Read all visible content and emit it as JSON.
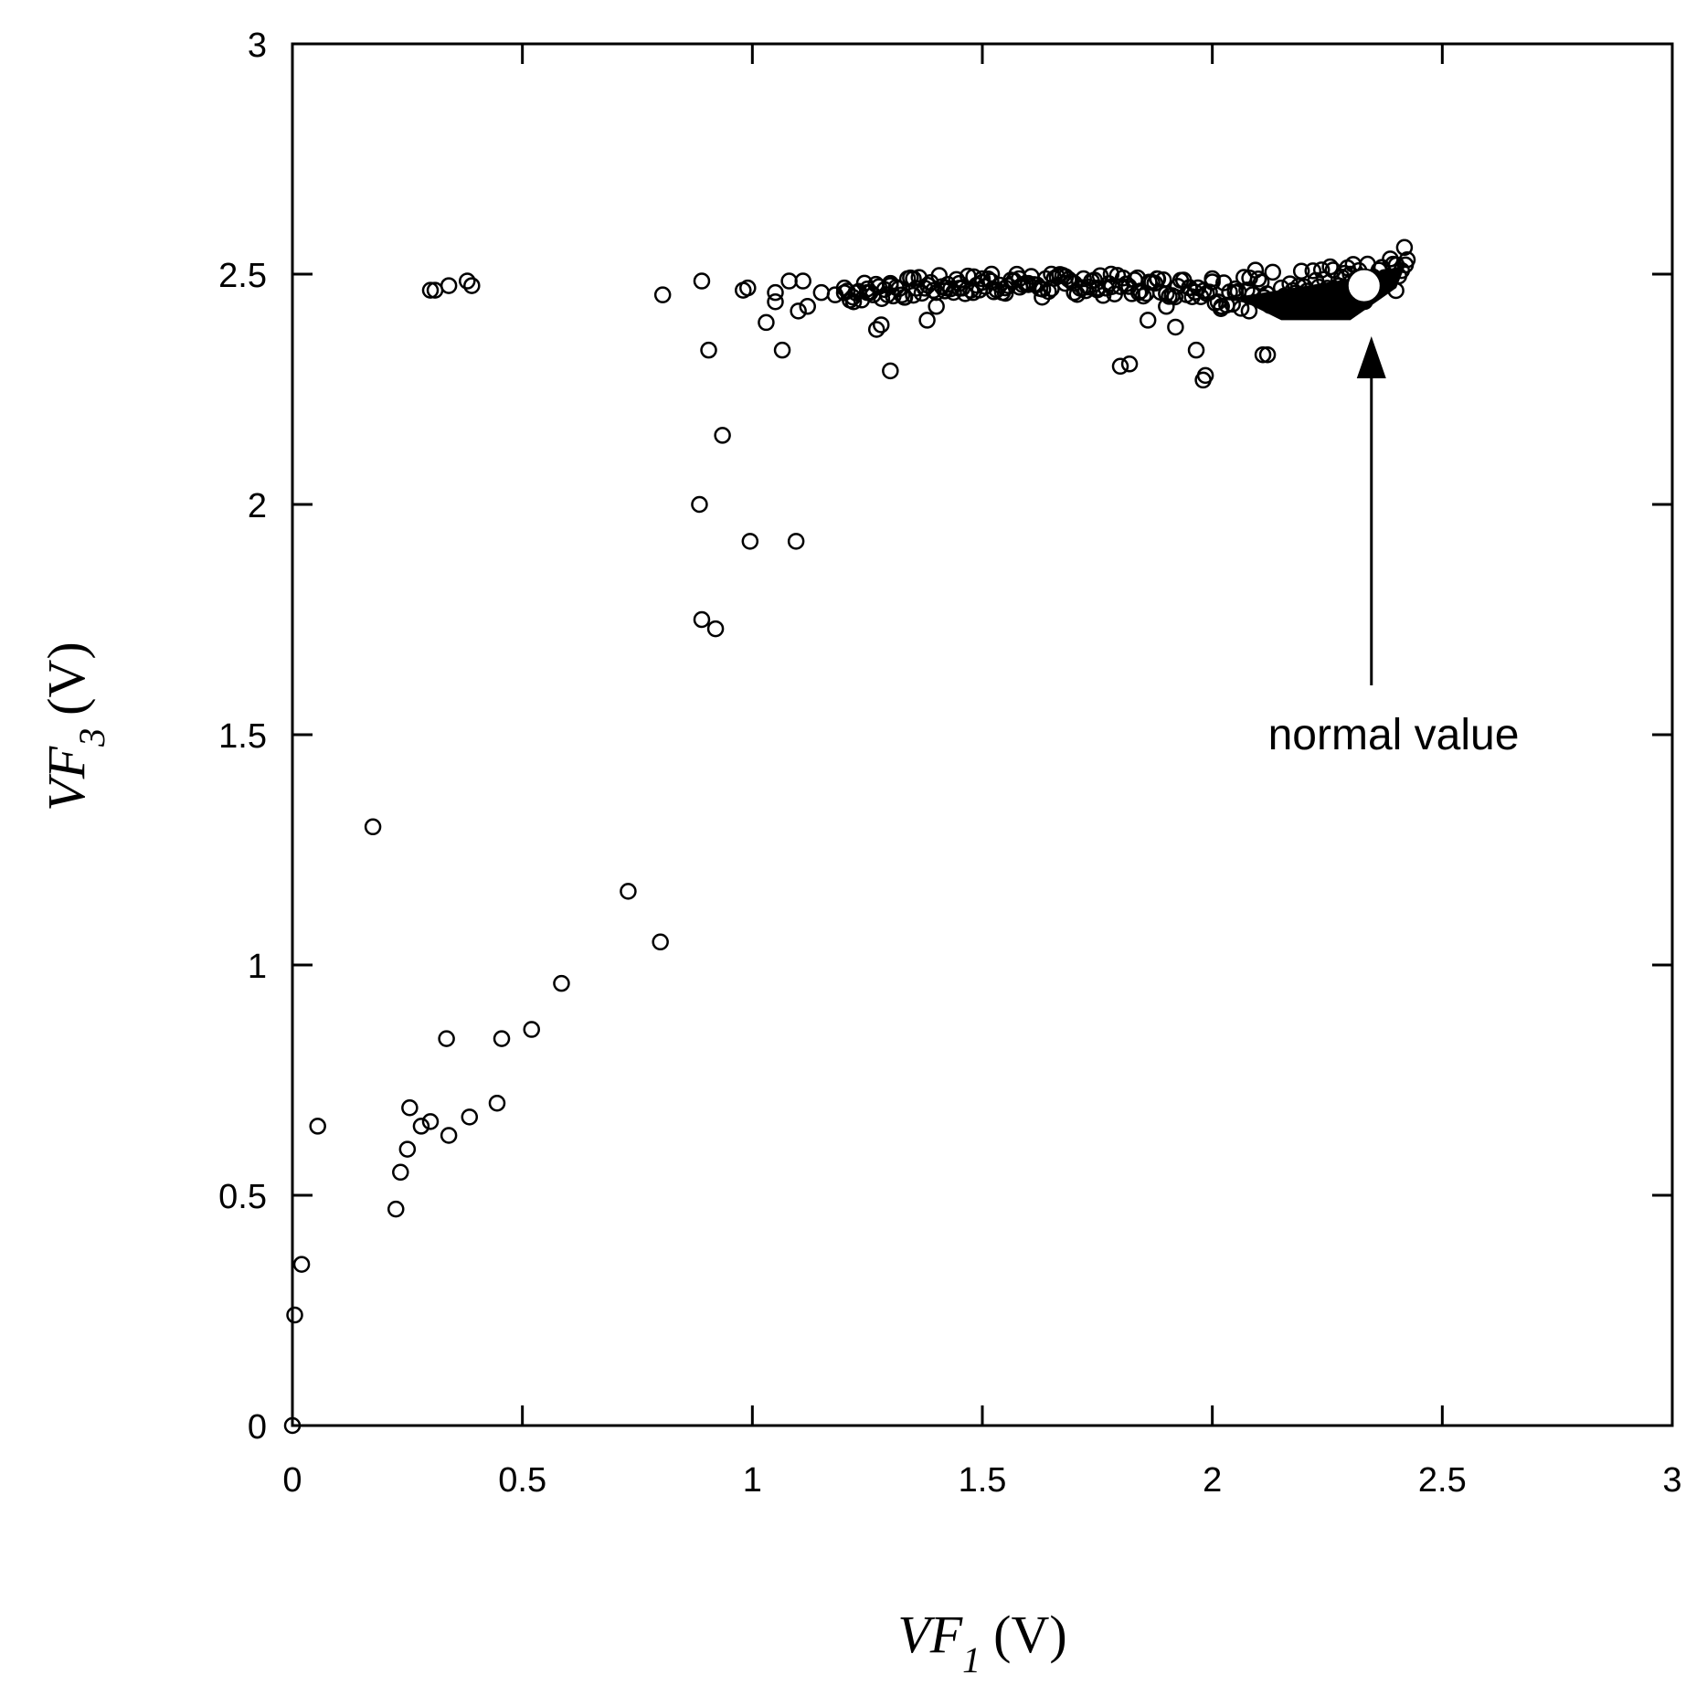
{
  "chart_data": {
    "type": "scatter",
    "title": "",
    "xlabel": {
      "var": "VF",
      "sub": "1",
      "unit": "(V)"
    },
    "ylabel": {
      "var": "VF",
      "sub": "3",
      "unit": "(V)"
    },
    "xlim": [
      0,
      3
    ],
    "ylim": [
      0,
      3
    ],
    "xticks": [
      "0",
      "0.5",
      "1",
      "1.5",
      "2",
      "2.5",
      "3"
    ],
    "yticks": [
      "0",
      "0.5",
      "1",
      "1.5",
      "2",
      "2.5",
      "3"
    ],
    "grid": false,
    "marker": "open-circle",
    "points": [
      [
        0.0,
        0.0
      ],
      [
        0.005,
        0.24
      ],
      [
        0.02,
        0.35
      ],
      [
        0.055,
        0.65
      ],
      [
        0.175,
        1.3
      ],
      [
        0.225,
        0.47
      ],
      [
        0.235,
        0.55
      ],
      [
        0.25,
        0.6
      ],
      [
        0.255,
        0.69
      ],
      [
        0.28,
        0.65
      ],
      [
        0.3,
        0.66
      ],
      [
        0.335,
        0.84
      ],
      [
        0.34,
        0.63
      ],
      [
        0.385,
        0.67
      ],
      [
        0.445,
        0.7
      ],
      [
        0.455,
        0.84
      ],
      [
        0.52,
        0.86
      ],
      [
        0.585,
        0.96
      ],
      [
        0.73,
        1.16
      ],
      [
        0.8,
        1.05
      ],
      [
        0.3,
        2.465
      ],
      [
        0.31,
        2.465
      ],
      [
        0.34,
        2.475
      ],
      [
        0.38,
        2.485
      ],
      [
        0.39,
        2.475
      ],
      [
        0.805,
        2.455
      ],
      [
        0.885,
        2.0
      ],
      [
        0.89,
        2.485
      ],
      [
        0.89,
        1.75
      ],
      [
        0.905,
        2.335
      ],
      [
        0.92,
        1.73
      ],
      [
        0.935,
        2.15
      ],
      [
        0.98,
        2.465
      ],
      [
        0.99,
        2.47
      ],
      [
        0.995,
        1.92
      ],
      [
        1.03,
        2.395
      ],
      [
        1.05,
        2.44
      ],
      [
        1.05,
        2.46
      ],
      [
        1.065,
        2.335
      ],
      [
        1.08,
        2.485
      ],
      [
        1.095,
        1.92
      ],
      [
        1.1,
        2.42
      ],
      [
        1.11,
        2.485
      ],
      [
        1.12,
        2.43
      ],
      [
        1.15,
        2.46
      ],
      [
        1.18,
        2.455
      ],
      [
        1.2,
        2.47
      ],
      [
        1.22,
        2.44
      ],
      [
        1.25,
        2.46
      ],
      [
        1.27,
        2.38
      ],
      [
        1.28,
        2.39
      ],
      [
        1.3,
        2.29
      ],
      [
        1.3,
        2.48
      ],
      [
        1.33,
        2.45
      ],
      [
        1.35,
        2.49
      ],
      [
        1.38,
        2.4
      ],
      [
        1.4,
        2.43
      ],
      [
        1.42,
        2.47
      ],
      [
        1.45,
        2.48
      ],
      [
        1.48,
        2.46
      ],
      [
        1.5,
        2.49
      ],
      [
        1.52,
        2.5
      ],
      [
        1.55,
        2.47
      ],
      [
        1.58,
        2.49
      ],
      [
        1.6,
        2.48
      ],
      [
        1.63,
        2.45
      ],
      [
        1.65,
        2.5
      ],
      [
        1.68,
        2.48
      ],
      [
        1.7,
        2.46
      ],
      [
        1.72,
        2.49
      ],
      [
        1.75,
        2.47
      ],
      [
        1.78,
        2.5
      ],
      [
        1.8,
        2.3
      ],
      [
        1.82,
        2.305
      ],
      [
        1.84,
        2.46
      ],
      [
        1.86,
        2.4
      ],
      [
        1.88,
        2.49
      ],
      [
        1.9,
        2.43
      ],
      [
        1.92,
        2.385
      ],
      [
        1.95,
        2.47
      ],
      [
        1.965,
        2.335
      ],
      [
        1.98,
        2.27
      ],
      [
        1.985,
        2.28
      ],
      [
        2.0,
        2.49
      ],
      [
        2.02,
        2.43
      ],
      [
        2.05,
        2.46
      ],
      [
        2.08,
        2.42
      ],
      [
        2.11,
        2.325
      ],
      [
        2.12,
        2.325
      ],
      [
        2.15,
        2.47
      ],
      [
        2.2,
        2.45
      ],
      [
        2.25,
        2.44
      ],
      [
        2.3,
        2.5
      ],
      [
        2.35,
        2.49
      ],
      [
        2.4,
        2.52
      ],
      [
        2.42,
        2.52
      ]
    ],
    "dense_band": [
      [
        1.2,
        2.46
      ],
      [
        1.4,
        2.475
      ],
      [
        1.6,
        2.48
      ],
      [
        1.8,
        2.475
      ],
      [
        2.0,
        2.47
      ],
      [
        2.2,
        2.47
      ],
      [
        2.35,
        2.48
      ],
      [
        2.43,
        2.52
      ]
    ],
    "highlight": {
      "x": 2.33,
      "y": 2.475,
      "label": "normal value"
    }
  }
}
